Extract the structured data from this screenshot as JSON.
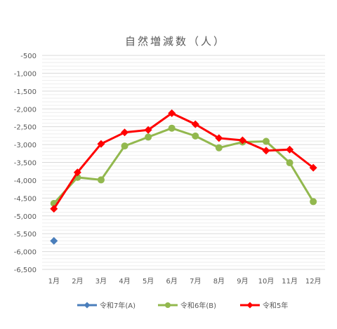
{
  "chart_data": {
    "type": "line",
    "title": "自然増減数（人）",
    "categories": [
      "1月",
      "2月",
      "3月",
      "4月",
      "5月",
      "6月",
      "7月",
      "8月",
      "9月",
      "10月",
      "11月",
      "12月"
    ],
    "ylim": [
      -6500,
      -500
    ],
    "yticks": [
      -500,
      -1000,
      -1500,
      -2000,
      -2500,
      -3000,
      -3500,
      -4000,
      -4500,
      -5000,
      -5500,
      -6000,
      -6500
    ],
    "ytick_labels": [
      "-500",
      "-1,000",
      "-1,500",
      "-2,000",
      "-2,500",
      "-3,000",
      "-3,500",
      "-4,000",
      "-4,500",
      "-5,000",
      "-5,500",
      "-6,000",
      "-6,500"
    ],
    "grid": true,
    "legend": "bottom",
    "series": [
      {
        "name": "令和7年(A)",
        "color": "#4a7ebb",
        "marker": "diamond",
        "values": [
          -5700,
          null,
          null,
          null,
          null,
          null,
          null,
          null,
          null,
          null,
          null,
          null
        ]
      },
      {
        "name": "令和6年(B)",
        "color": "#92b84e",
        "marker": "circle",
        "values": [
          -4650,
          -3920,
          -3990,
          -3040,
          -2790,
          -2540,
          -2760,
          -3090,
          -2930,
          -2910,
          -3510,
          -4600
        ]
      },
      {
        "name": "令和5年",
        "color": "#ff0000",
        "marker": "diamond",
        "values": [
          -4800,
          -3780,
          -2980,
          -2660,
          -2590,
          -2120,
          -2430,
          -2820,
          -2880,
          -3170,
          -3140,
          -3650
        ]
      }
    ]
  }
}
